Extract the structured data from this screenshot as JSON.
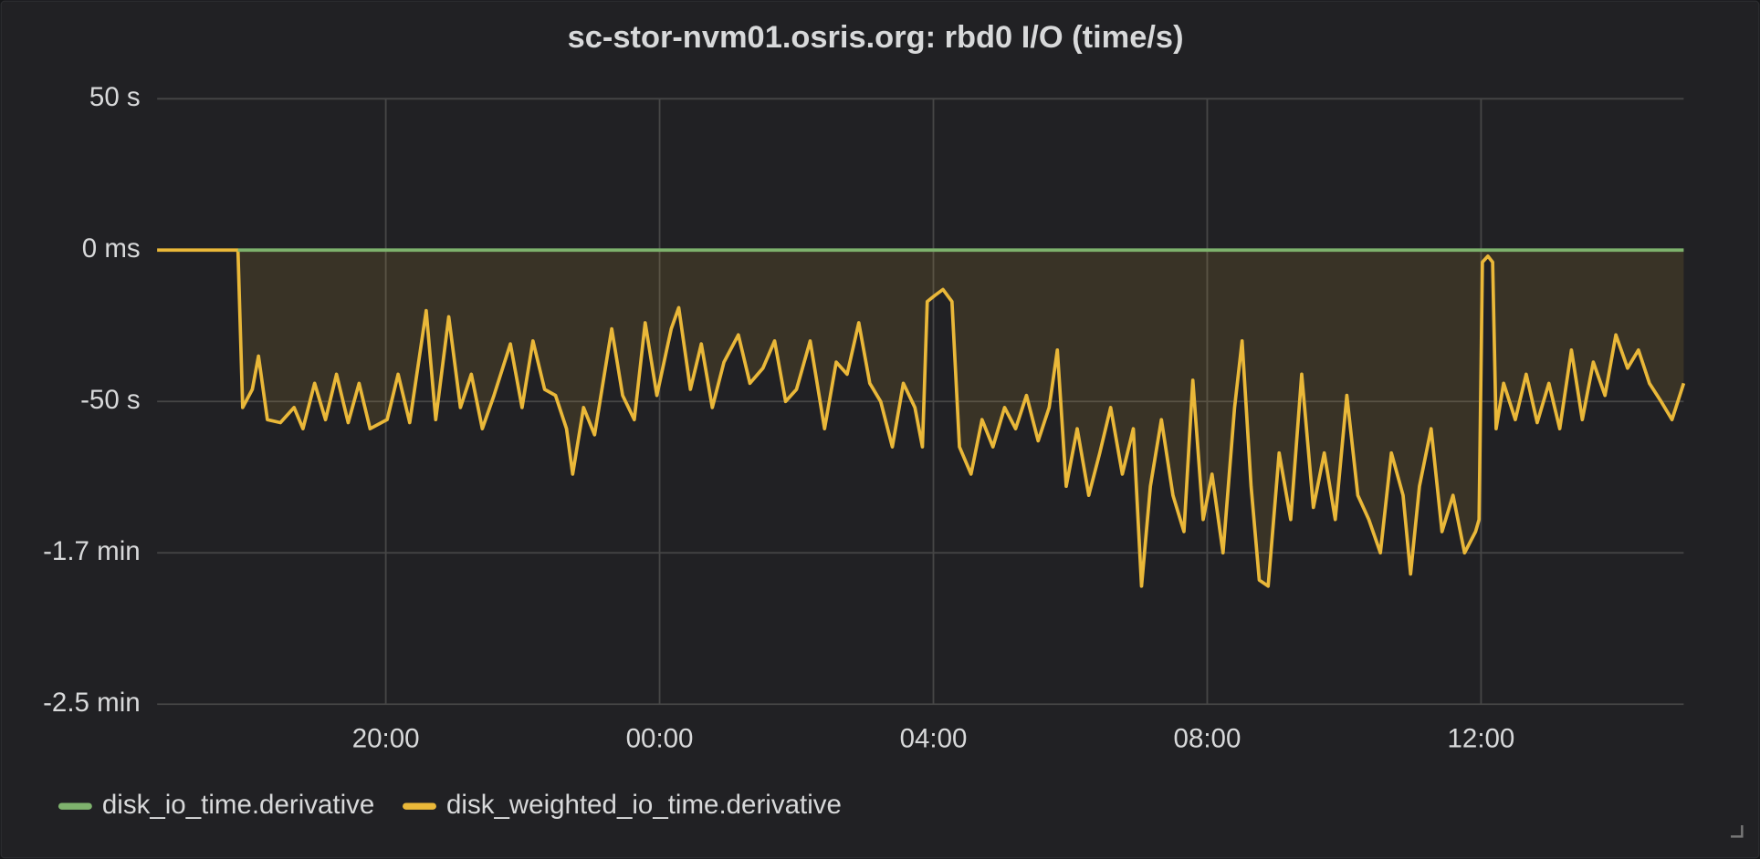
{
  "chart_data": {
    "type": "line",
    "title": "sc-stor-nvm01.osris.org: rbd0 I/O (time/s)",
    "x": [
      16.66,
      17.84,
      17.91,
      18.05,
      18.14,
      18.27,
      18.46,
      18.66,
      18.79,
      18.96,
      19.12,
      19.28,
      19.45,
      19.61,
      19.77,
      20.02,
      20.18,
      20.35,
      20.59,
      20.73,
      20.92,
      21.09,
      21.25,
      21.41,
      21.58,
      21.82,
      21.99,
      22.15,
      22.32,
      22.48,
      22.64,
      22.73,
      22.89,
      23.05,
      23.3,
      23.46,
      23.63,
      23.79,
      23.96,
      24.17,
      24.28,
      24.45,
      24.61,
      24.77,
      24.94,
      25.15,
      25.32,
      25.51,
      25.68,
      25.84,
      26.0,
      26.2,
      26.41,
      26.58,
      26.74,
      26.91,
      27.07,
      27.23,
      27.4,
      27.56,
      27.73,
      27.84,
      27.91,
      28.02,
      28.14,
      28.27,
      28.38,
      28.55,
      28.71,
      28.87,
      29.04,
      29.2,
      29.36,
      29.53,
      29.69,
      29.81,
      29.94,
      30.1,
      30.27,
      30.43,
      30.59,
      30.76,
      30.92,
      31.04,
      31.17,
      31.33,
      31.5,
      31.66,
      31.79,
      31.94,
      32.07,
      32.23,
      32.4,
      32.51,
      32.64,
      32.76,
      32.89,
      33.05,
      33.22,
      33.38,
      33.55,
      33.71,
      33.87,
      34.04,
      34.2,
      34.36,
      34.53,
      34.69,
      34.86,
      34.97,
      35.1,
      35.27,
      35.43,
      35.59,
      35.76,
      35.92,
      35.97,
      36.02,
      36.1,
      36.17,
      36.22,
      36.33,
      36.5,
      36.66,
      36.82,
      36.99,
      37.15,
      37.32,
      37.48,
      37.64,
      37.81,
      37.97,
      38.14,
      38.3,
      38.46,
      38.63,
      38.79,
      38.96
    ],
    "series": [
      {
        "name": "disk_io_time.derivative",
        "color": "#7eb26d",
        "fill": true,
        "values": [
          null,
          0,
          0,
          0,
          0,
          0,
          0,
          0,
          0,
          0,
          0,
          0,
          0,
          0,
          0,
          0,
          0,
          0,
          0,
          0,
          0,
          0,
          0,
          0,
          0,
          0,
          0,
          0,
          0,
          0,
          0,
          0,
          0,
          0,
          0,
          0,
          0,
          0,
          0,
          0,
          0,
          0,
          0,
          0,
          0,
          0,
          0,
          0,
          0,
          0,
          0,
          0,
          0,
          0,
          0,
          0,
          0,
          0,
          0,
          0,
          0,
          0,
          0,
          0,
          0,
          0,
          0,
          0,
          0,
          0,
          0,
          0,
          0,
          0,
          0,
          0,
          0,
          0,
          0,
          0,
          0,
          0,
          0,
          0,
          0,
          0,
          0,
          0,
          0,
          0,
          0,
          0,
          0,
          0,
          0,
          0,
          0,
          0,
          0,
          0,
          0,
          0,
          0,
          0,
          0,
          0,
          0,
          0,
          0,
          0,
          0,
          0,
          0,
          0,
          0,
          0,
          0,
          0,
          0,
          0,
          0,
          0,
          0,
          0,
          0,
          0,
          0,
          0,
          0,
          0,
          0,
          0,
          0,
          0,
          0,
          0,
          0,
          0
        ]
      },
      {
        "name": "disk_weighted_io_time.derivative",
        "color": "#eab839",
        "fill": true,
        "values": [
          0,
          0,
          -52,
          -46,
          -35,
          -56,
          -57,
          -52,
          -59,
          -44,
          -56,
          -41,
          -57,
          -44,
          -59,
          -56,
          -41,
          -57,
          -20,
          -56,
          -22,
          -52,
          -41,
          -59,
          -48,
          -31,
          -52,
          -30,
          -46,
          -48,
          -59,
          -74,
          -52,
          -61,
          -26,
          -48,
          -56,
          -24,
          -48,
          -26,
          -19,
          -46,
          -31,
          -52,
          -37,
          -28,
          -44,
          -39,
          -30,
          -50,
          -46,
          -30,
          -59,
          -37,
          -41,
          -24,
          -44,
          -50,
          -65,
          -44,
          -52,
          -65,
          -17,
          -15,
          -13,
          -17,
          -65,
          -74,
          -56,
          -65,
          -52,
          -59,
          -48,
          -63,
          -52,
          -33,
          -78,
          -59,
          -81,
          -67,
          -52,
          -74,
          -59,
          -111,
          -78,
          -56,
          -81,
          -93,
          -43,
          -89,
          -74,
          -100,
          -52,
          -30,
          -78,
          -109,
          -111,
          -67,
          -89,
          -41,
          -85,
          -67,
          -89,
          -48,
          -81,
          -89,
          -100,
          -67,
          -81,
          -107,
          -78,
          -59,
          -93,
          -81,
          -100,
          -93,
          -89,
          -4,
          -2,
          -4,
          -59,
          -44,
          -56,
          -41,
          -57,
          -44,
          -59,
          -33,
          -56,
          -37,
          -48,
          -28,
          -39,
          -33,
          -44,
          -50,
          -56,
          -44
        ]
      }
    ],
    "xlim": [
      16.66,
      38.96
    ],
    "xticks": [
      {
        "value": 20,
        "label": "20:00"
      },
      {
        "value": 24,
        "label": "00:00"
      },
      {
        "value": 28,
        "label": "04:00"
      },
      {
        "value": 32,
        "label": "08:00"
      },
      {
        "value": 36,
        "label": "12:00"
      }
    ],
    "ylim": [
      -150,
      50
    ],
    "yticks": [
      {
        "value": 50,
        "label": "50 s"
      },
      {
        "value": 0,
        "label": "0 ms"
      },
      {
        "value": -50,
        "label": "-50 s"
      },
      {
        "value": -100,
        "label": "-1.7 min"
      },
      {
        "value": -150,
        "label": "-2.5 min"
      }
    ],
    "grid": true
  }
}
